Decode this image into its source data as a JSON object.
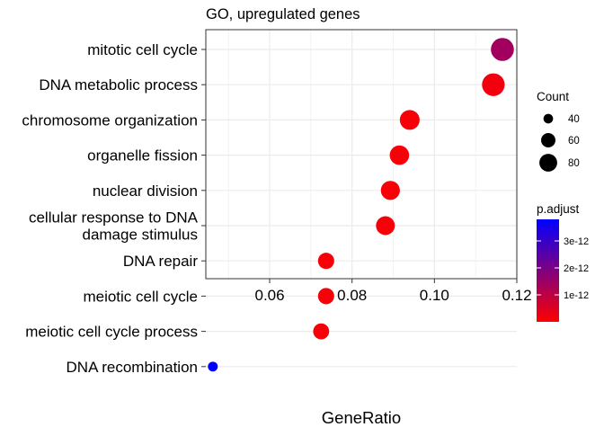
{
  "chart_data": {
    "type": "scatter",
    "title": "GO, upregulated genes",
    "xlabel": "GeneRatio",
    "ylabel": "",
    "xlim": [
      0.0445,
      0.12
    ],
    "xticks": [
      "0.06",
      "0.08",
      "0.10",
      "0.12"
    ],
    "xtick_values": [
      0.06,
      0.08,
      0.1,
      0.12
    ],
    "grid": true,
    "legend_position": "right",
    "categories": [
      "mitotic cell cycle",
      "DNA metabolic process",
      "chromosome organization",
      "organelle fission",
      "nuclear division",
      "cellular response to DNA damage stimulus",
      "DNA repair",
      "meiotic cell cycle",
      "meiotic cell cycle process",
      "DNA recombination"
    ],
    "category_lines": [
      [
        "mitotic cell cycle"
      ],
      [
        "DNA metabolic process"
      ],
      [
        "chromosome organization"
      ],
      [
        "organelle fission"
      ],
      [
        "nuclear division"
      ],
      [
        "cellular response to DNA",
        "damage stimulus"
      ],
      [
        "DNA repair"
      ],
      [
        "meiotic cell cycle"
      ],
      [
        "meiotic cell cycle process"
      ],
      [
        "DNA recombination"
      ]
    ],
    "points": [
      {
        "term": "mitotic cell cycle",
        "gene_ratio": 0.1165,
        "count": 95,
        "p_adjust": 1.4e-12
      },
      {
        "term": "DNA metabolic process",
        "gene_ratio": 0.1143,
        "count": 93,
        "p_adjust": 2e-13
      },
      {
        "term": "chromosome organization",
        "gene_ratio": 0.094,
        "count": 77,
        "p_adjust": 1e-13
      },
      {
        "term": "organelle fission",
        "gene_ratio": 0.0915,
        "count": 75,
        "p_adjust": 1e-13
      },
      {
        "term": "nuclear division",
        "gene_ratio": 0.0893,
        "count": 73,
        "p_adjust": 1e-13
      },
      {
        "term": "cellular response to DNA damage stimulus",
        "gene_ratio": 0.0881,
        "count": 72,
        "p_adjust": 1e-13
      },
      {
        "term": "DNA repair",
        "gene_ratio": 0.0737,
        "count": 60,
        "p_adjust": 1e-13
      },
      {
        "term": "meiotic cell cycle",
        "gene_ratio": 0.0737,
        "count": 60,
        "p_adjust": 1e-13
      },
      {
        "term": "meiotic cell cycle process",
        "gene_ratio": 0.0725,
        "count": 59,
        "p_adjust": 1e-13
      },
      {
        "term": "DNA recombination",
        "gene_ratio": 0.0462,
        "count": 38,
        "p_adjust": 3.8e-12
      }
    ],
    "size_legend": {
      "title": "Count",
      "entries": [
        {
          "label": "40",
          "value": 40
        },
        {
          "label": "60",
          "value": 60
        },
        {
          "label": "80",
          "value": 80
        }
      ]
    },
    "color_legend": {
      "title": "p.adjust",
      "range": [
        0.0,
        3.8e-12
      ],
      "low_color": "#FF0000",
      "high_color": "#0000FF",
      "ticks": [
        {
          "label": "3e-12",
          "value": 3e-12
        },
        {
          "label": "2e-12",
          "value": 2e-12
        },
        {
          "label": "1e-12",
          "value": 1e-12
        }
      ]
    },
    "colors": {
      "panel_border": "#333333",
      "grid": "#EBEBEB",
      "text": "#000000"
    }
  }
}
